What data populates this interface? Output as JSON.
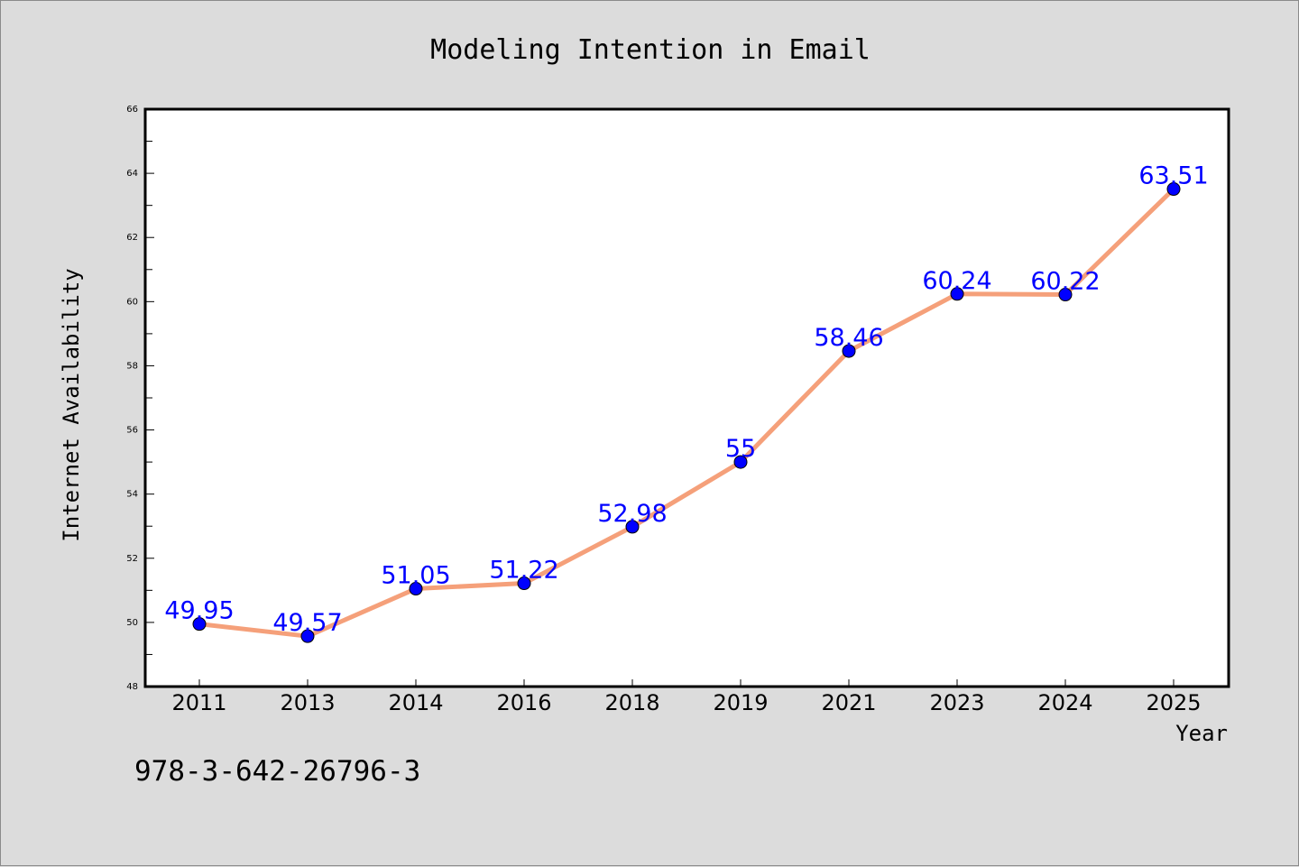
{
  "chart_data": {
    "type": "line",
    "title": "Modeling Intention in Email",
    "xlabel": "Year",
    "ylabel": "Internet Availability",
    "categories": [
      "2011",
      "2013",
      "2014",
      "2016",
      "2018",
      "2019",
      "2021",
      "2023",
      "2024",
      "2025"
    ],
    "series": [
      {
        "values": [
          49.95,
          49.57,
          51.05,
          51.22,
          52.98,
          55,
          58.46,
          60.24,
          60.22,
          63.51
        ],
        "labels": [
          "49.95",
          "49.57",
          "51.05",
          "51.22",
          "52.98",
          "55",
          "58.46",
          "60.24",
          "60.22",
          "63.51"
        ],
        "line_color": "#f5a07a",
        "marker_color": "#0000ff"
      }
    ],
    "ylim": [
      48,
      66
    ],
    "yticks": [
      "48",
      "50",
      "52",
      "54",
      "56",
      "58",
      "60",
      "62",
      "64",
      "66"
    ],
    "grid": false,
    "legend": "none"
  },
  "footer": {
    "isbn": "978-3-642-26796-3"
  }
}
